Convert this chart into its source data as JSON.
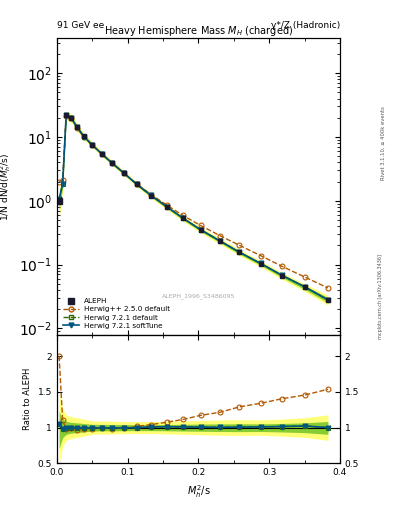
{
  "title_left": "91 GeV ee",
  "title_right": "γ*/Z (Hadronic)",
  "plot_title": "Heavy Hemisphere Mass $M_H$ (charged)",
  "xlabel": "$M^2_h$/s",
  "ylabel_main": "1/N dN/d($M^2_h$/s)",
  "ylabel_ratio": "Ratio to ALEPH",
  "right_label": "Rivet 3.1.10, ≥ 400k events",
  "watermark": "ALEPH_1996_S3486095",
  "mcplots_label": "mcplots.cern.ch [arXiv:1306.3436]",
  "x_data": [
    0.003,
    0.008,
    0.013,
    0.02,
    0.028,
    0.038,
    0.05,
    0.063,
    0.078,
    0.095,
    0.113,
    0.133,
    0.155,
    0.178,
    0.203,
    0.23,
    0.258,
    0.288,
    0.318,
    0.35,
    0.383
  ],
  "aleph_y": [
    1.0,
    1.9,
    22.0,
    20.0,
    14.5,
    10.2,
    7.5,
    5.5,
    3.9,
    2.7,
    1.8,
    1.2,
    0.8,
    0.53,
    0.35,
    0.235,
    0.155,
    0.103,
    0.067,
    0.044,
    0.028
  ],
  "aleph_ylo": [
    0.5,
    1.4,
    18.0,
    17.0,
    12.5,
    9.0,
    6.8,
    5.0,
    3.55,
    2.47,
    1.65,
    1.1,
    0.73,
    0.48,
    0.315,
    0.21,
    0.138,
    0.092,
    0.059,
    0.038,
    0.023
  ],
  "aleph_yhi": [
    1.5,
    2.4,
    26.0,
    23.0,
    16.5,
    11.4,
    8.2,
    6.0,
    4.25,
    2.93,
    1.95,
    1.3,
    0.87,
    0.58,
    0.385,
    0.26,
    0.172,
    0.114,
    0.075,
    0.05,
    0.033
  ],
  "hwpp_y": [
    2.0,
    2.1,
    21.5,
    19.8,
    14.0,
    10.0,
    7.4,
    5.45,
    3.85,
    2.68,
    1.83,
    1.25,
    0.86,
    0.59,
    0.41,
    0.285,
    0.2,
    0.138,
    0.094,
    0.064,
    0.043
  ],
  "hw721d_y": [
    1.05,
    1.85,
    21.8,
    19.9,
    14.4,
    10.15,
    7.48,
    5.47,
    3.88,
    2.69,
    1.8,
    1.21,
    0.81,
    0.535,
    0.352,
    0.236,
    0.156,
    0.104,
    0.068,
    0.045,
    0.028
  ],
  "hw721s_y": [
    1.05,
    1.85,
    21.8,
    19.9,
    14.4,
    10.15,
    7.48,
    5.47,
    3.88,
    2.69,
    1.8,
    1.21,
    0.81,
    0.535,
    0.352,
    0.236,
    0.156,
    0.104,
    0.068,
    0.045,
    0.028
  ],
  "color_aleph": "#1a1a2e",
  "color_hwpp": "#b35900",
  "color_hw721d": "#2d6a00",
  "color_hw721s": "#005580",
  "band_yellow": "#ffff77",
  "band_green": "#88cc33",
  "xlim": [
    0.0,
    0.4
  ],
  "ylim_main": [
    0.008,
    350
  ],
  "ylim_ratio": [
    0.5,
    2.3
  ],
  "yticks_ratio": [
    0.5,
    1.0,
    1.5,
    2.0
  ]
}
